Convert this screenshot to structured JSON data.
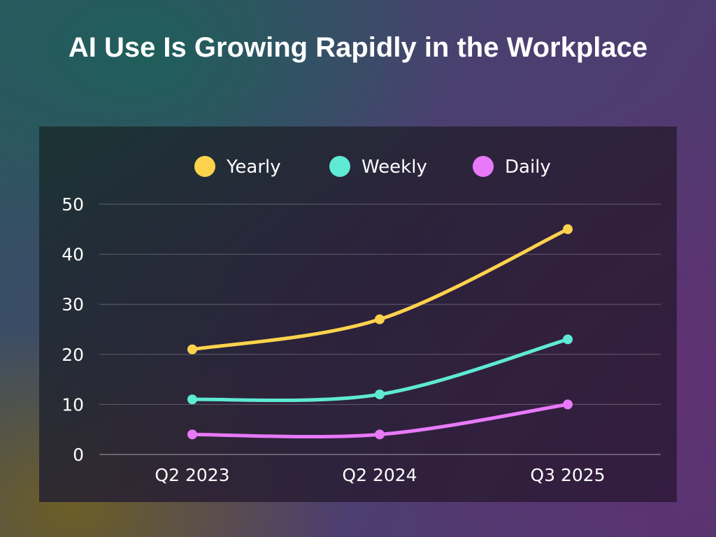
{
  "title": "AI Use Is Growing Rapidly in the Workplace",
  "chart_data": {
    "type": "line",
    "title": "AI Use Is Growing Rapidly in the Workplace",
    "categories": [
      "Q2 2023",
      "Q2 2024",
      "Q3 2025"
    ],
    "series": [
      {
        "name": "Yearly",
        "values": [
          21,
          27,
          45
        ],
        "color": "#FDD34D"
      },
      {
        "name": "Weekly",
        "values": [
          11,
          12,
          23
        ],
        "color": "#5EEAD4"
      },
      {
        "name": "Daily",
        "values": [
          4,
          4,
          10
        ],
        "color": "#E879F9"
      }
    ],
    "ylim": [
      0,
      50
    ],
    "yticks": [
      0,
      10,
      20,
      30,
      40,
      50
    ],
    "grid": true,
    "legend": "top",
    "smooth": true
  }
}
